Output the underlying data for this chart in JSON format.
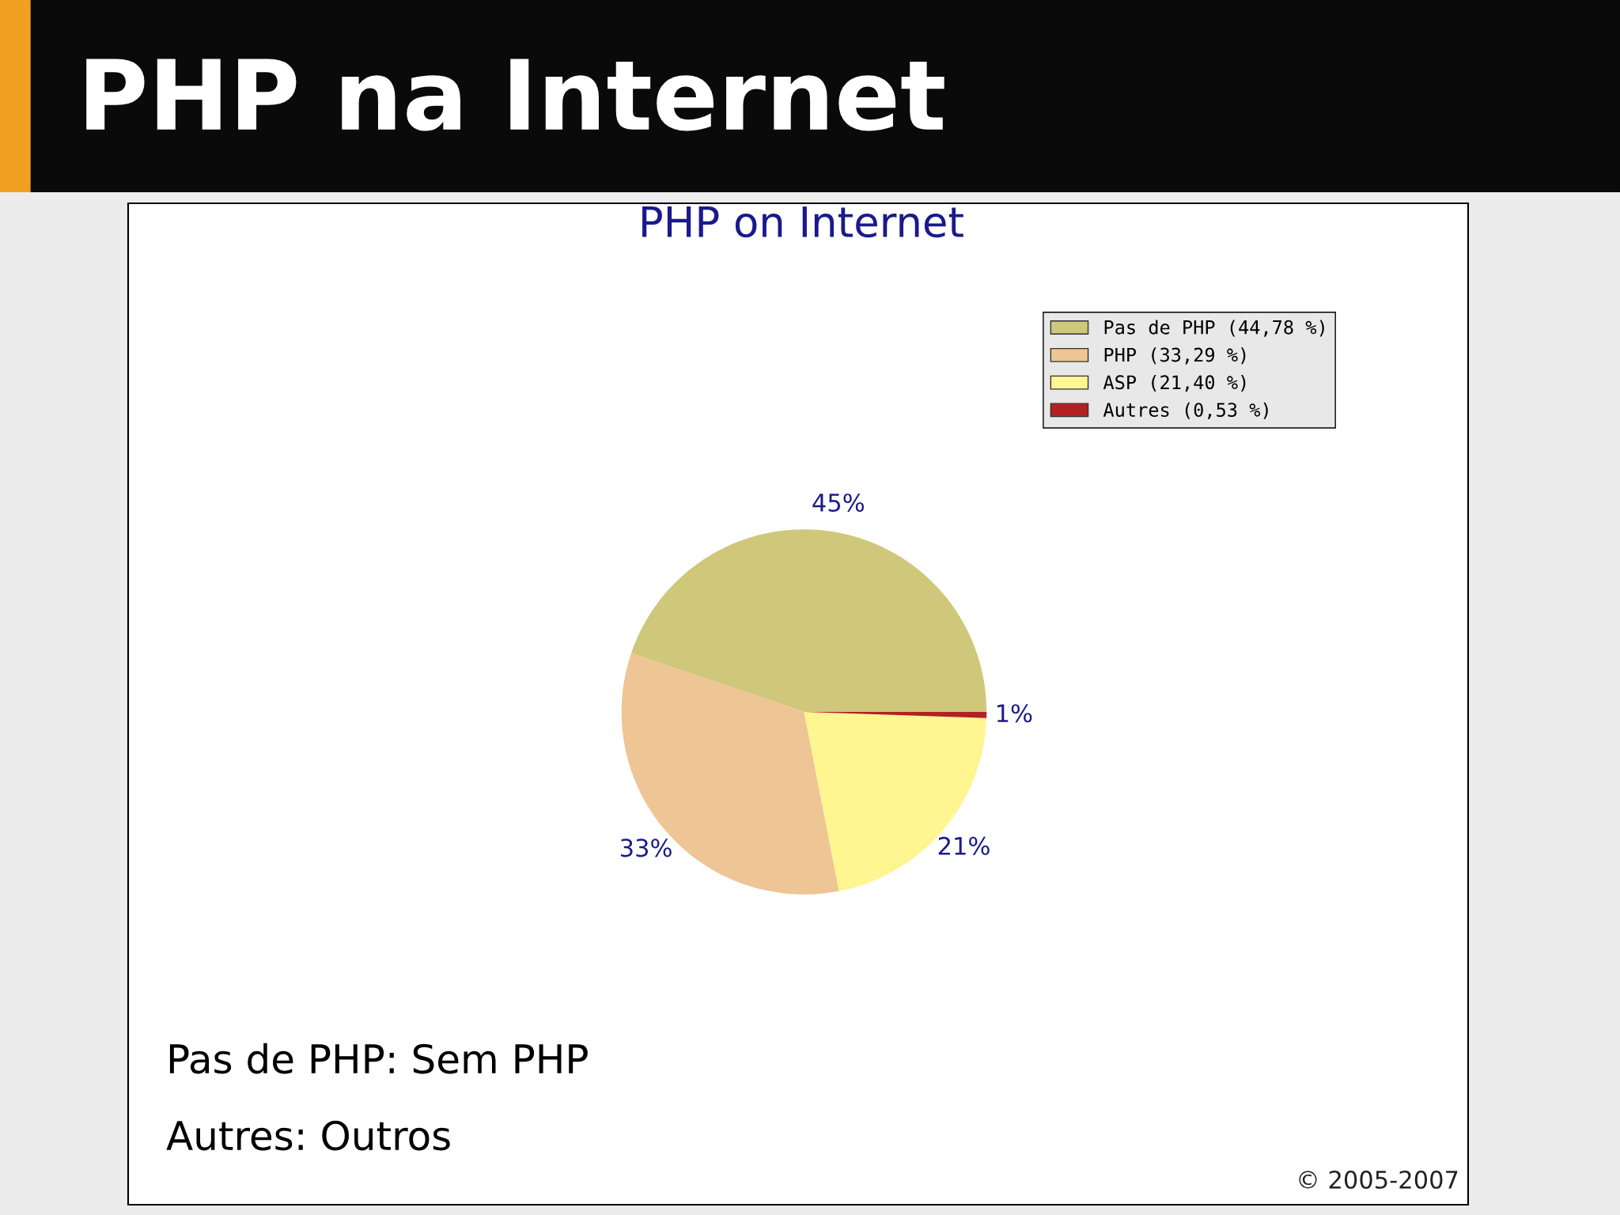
{
  "chart_data": {
    "type": "pie",
    "title": "PHP na Internet",
    "subtitle": "PHP on Internet",
    "categories": [
      "Pas de PHP (44,78 %)",
      "PHP (33,29 %)",
      "ASP (21,40 %)",
      "Autres (0,53 %)"
    ],
    "values": [
      44.78,
      33.29,
      21.4,
      0.53
    ],
    "colors": [
      "#cfc77a",
      "#eec594",
      "#fff591",
      "#b22222"
    ],
    "value_labels": [
      "45%",
      "33%",
      "21%",
      "1%"
    ],
    "legend": "top right",
    "annotations": [
      "Pas de PHP: Sem PHP",
      "Autres: Outros",
      "© 2005-2007"
    ]
  }
}
